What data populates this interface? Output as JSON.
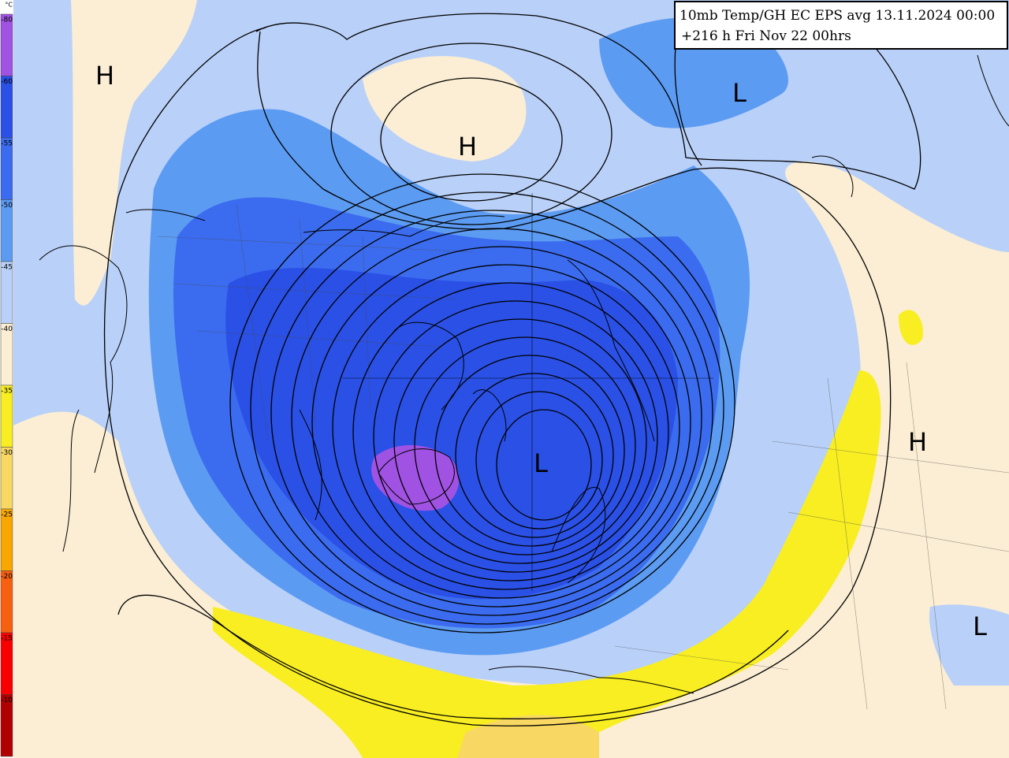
{
  "title": {
    "line1": "10mb Temp/GH EC EPS avg 13.11.2024 00:00",
    "line2": "+216 h Fri Nov 22 00hrs"
  },
  "legend": {
    "unit": "°C",
    "bins": [
      {
        "label": "-80",
        "color": "#a052e2"
      },
      {
        "label": "-60",
        "color": "#2a50e6"
      },
      {
        "label": "-55",
        "color": "#3b6cef"
      },
      {
        "label": "-50",
        "color": "#5c9bf2"
      },
      {
        "label": "-45",
        "color": "#b9d0f8"
      },
      {
        "label": "-40",
        "color": "#fbeed4"
      },
      {
        "label": "-35",
        "color": "#f8ee22"
      },
      {
        "label": "-30",
        "color": "#f8d862"
      },
      {
        "label": "-25",
        "color": "#f8a600"
      },
      {
        "label": "-20",
        "color": "#f66010"
      },
      {
        "label": "-15",
        "color": "#f80000"
      },
      {
        "label": "-10",
        "color": "#b00000"
      }
    ]
  },
  "pressure_labels": [
    "H",
    "H",
    "L",
    "L",
    "H",
    "L"
  ]
}
